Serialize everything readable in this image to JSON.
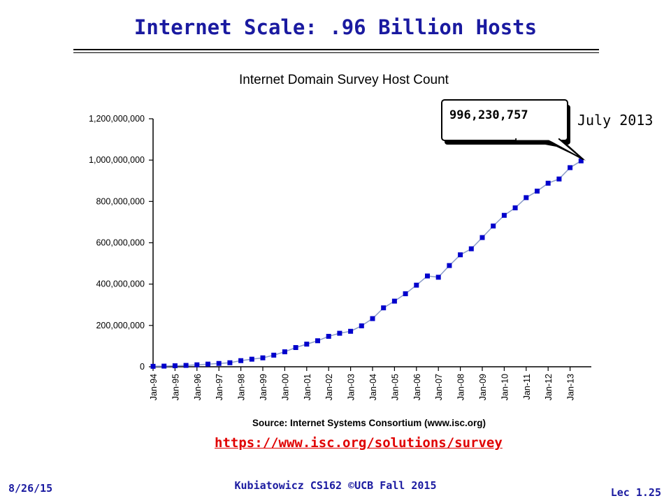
{
  "slide": {
    "title": "Internet Scale: .96 Billion Hosts",
    "url": "https://www.isc.org/solutions/survey",
    "footer_left": "8/26/15",
    "footer_center": "Kubiatowicz CS162 ©UCB Fall 2015",
    "footer_right": "Lec 1.25"
  },
  "chart_data": {
    "type": "line",
    "title": "Internet Domain Survey Host Count",
    "source": "Source: Internet Systems Consortium (www.isc.org)",
    "y_tick_labels": [
      "0",
      "200,000,000",
      "400,000,000",
      "600,000,000",
      "800,000,000",
      "1,000,000,000",
      "1,200,000,000"
    ],
    "y_ticks": [
      0,
      200000000,
      400000000,
      600000000,
      800000000,
      1000000000,
      1200000000
    ],
    "ylim": [
      0,
      1200000000
    ],
    "x_tick_labels": [
      "Jan-94",
      "Jan-95",
      "Jan-96",
      "Jan-97",
      "Jan-98",
      "Jan-99",
      "Jan-00",
      "Jan-01",
      "Jan-02",
      "Jan-03",
      "Jan-04",
      "Jan-05",
      "Jan-06",
      "Jan-07",
      "Jan-08",
      "Jan-09",
      "Jan-10",
      "Jan-11",
      "Jan-12",
      "Jan-13"
    ],
    "grid": false,
    "marker_color": "#0000cc",
    "line_color": "#8a9bc8",
    "x": [
      "Jan-94",
      "Jul-94",
      "Jan-95",
      "Jul-95",
      "Jan-96",
      "Jul-96",
      "Jan-97",
      "Jul-97",
      "Jan-98",
      "Jul-98",
      "Jan-99",
      "Jul-99",
      "Jan-00",
      "Jul-00",
      "Jan-01",
      "Jul-01",
      "Jan-02",
      "Jul-02",
      "Jan-03",
      "Jul-03",
      "Jan-04",
      "Jul-04",
      "Jan-05",
      "Jul-05",
      "Jan-06",
      "Jul-06",
      "Jan-07",
      "Jul-07",
      "Jan-08",
      "Jul-08",
      "Jan-09",
      "Jul-09",
      "Jan-10",
      "Jul-10",
      "Jan-11",
      "Jul-11",
      "Jan-12",
      "Jul-12",
      "Jan-13",
      "Jul-13"
    ],
    "values": [
      2200000,
      3200000,
      4900000,
      6600000,
      9500000,
      12900000,
      16100000,
      19500000,
      29700000,
      36700000,
      43200000,
      56200000,
      72400000,
      93000000,
      109600000,
      125900000,
      147300000,
      162100000,
      171600000,
      198100000,
      233100000,
      285100000,
      317600000,
      353300000,
      394900000,
      439300000,
      433200000,
      489800000,
      541700000,
      570900000,
      625200000,
      681100000,
      732700000,
      768900000,
      818400000,
      849900000,
      888200000,
      908600000,
      963500000,
      996230757
    ],
    "callout": {
      "value_label": "996,230,757",
      "date_label": "July 2013"
    }
  }
}
